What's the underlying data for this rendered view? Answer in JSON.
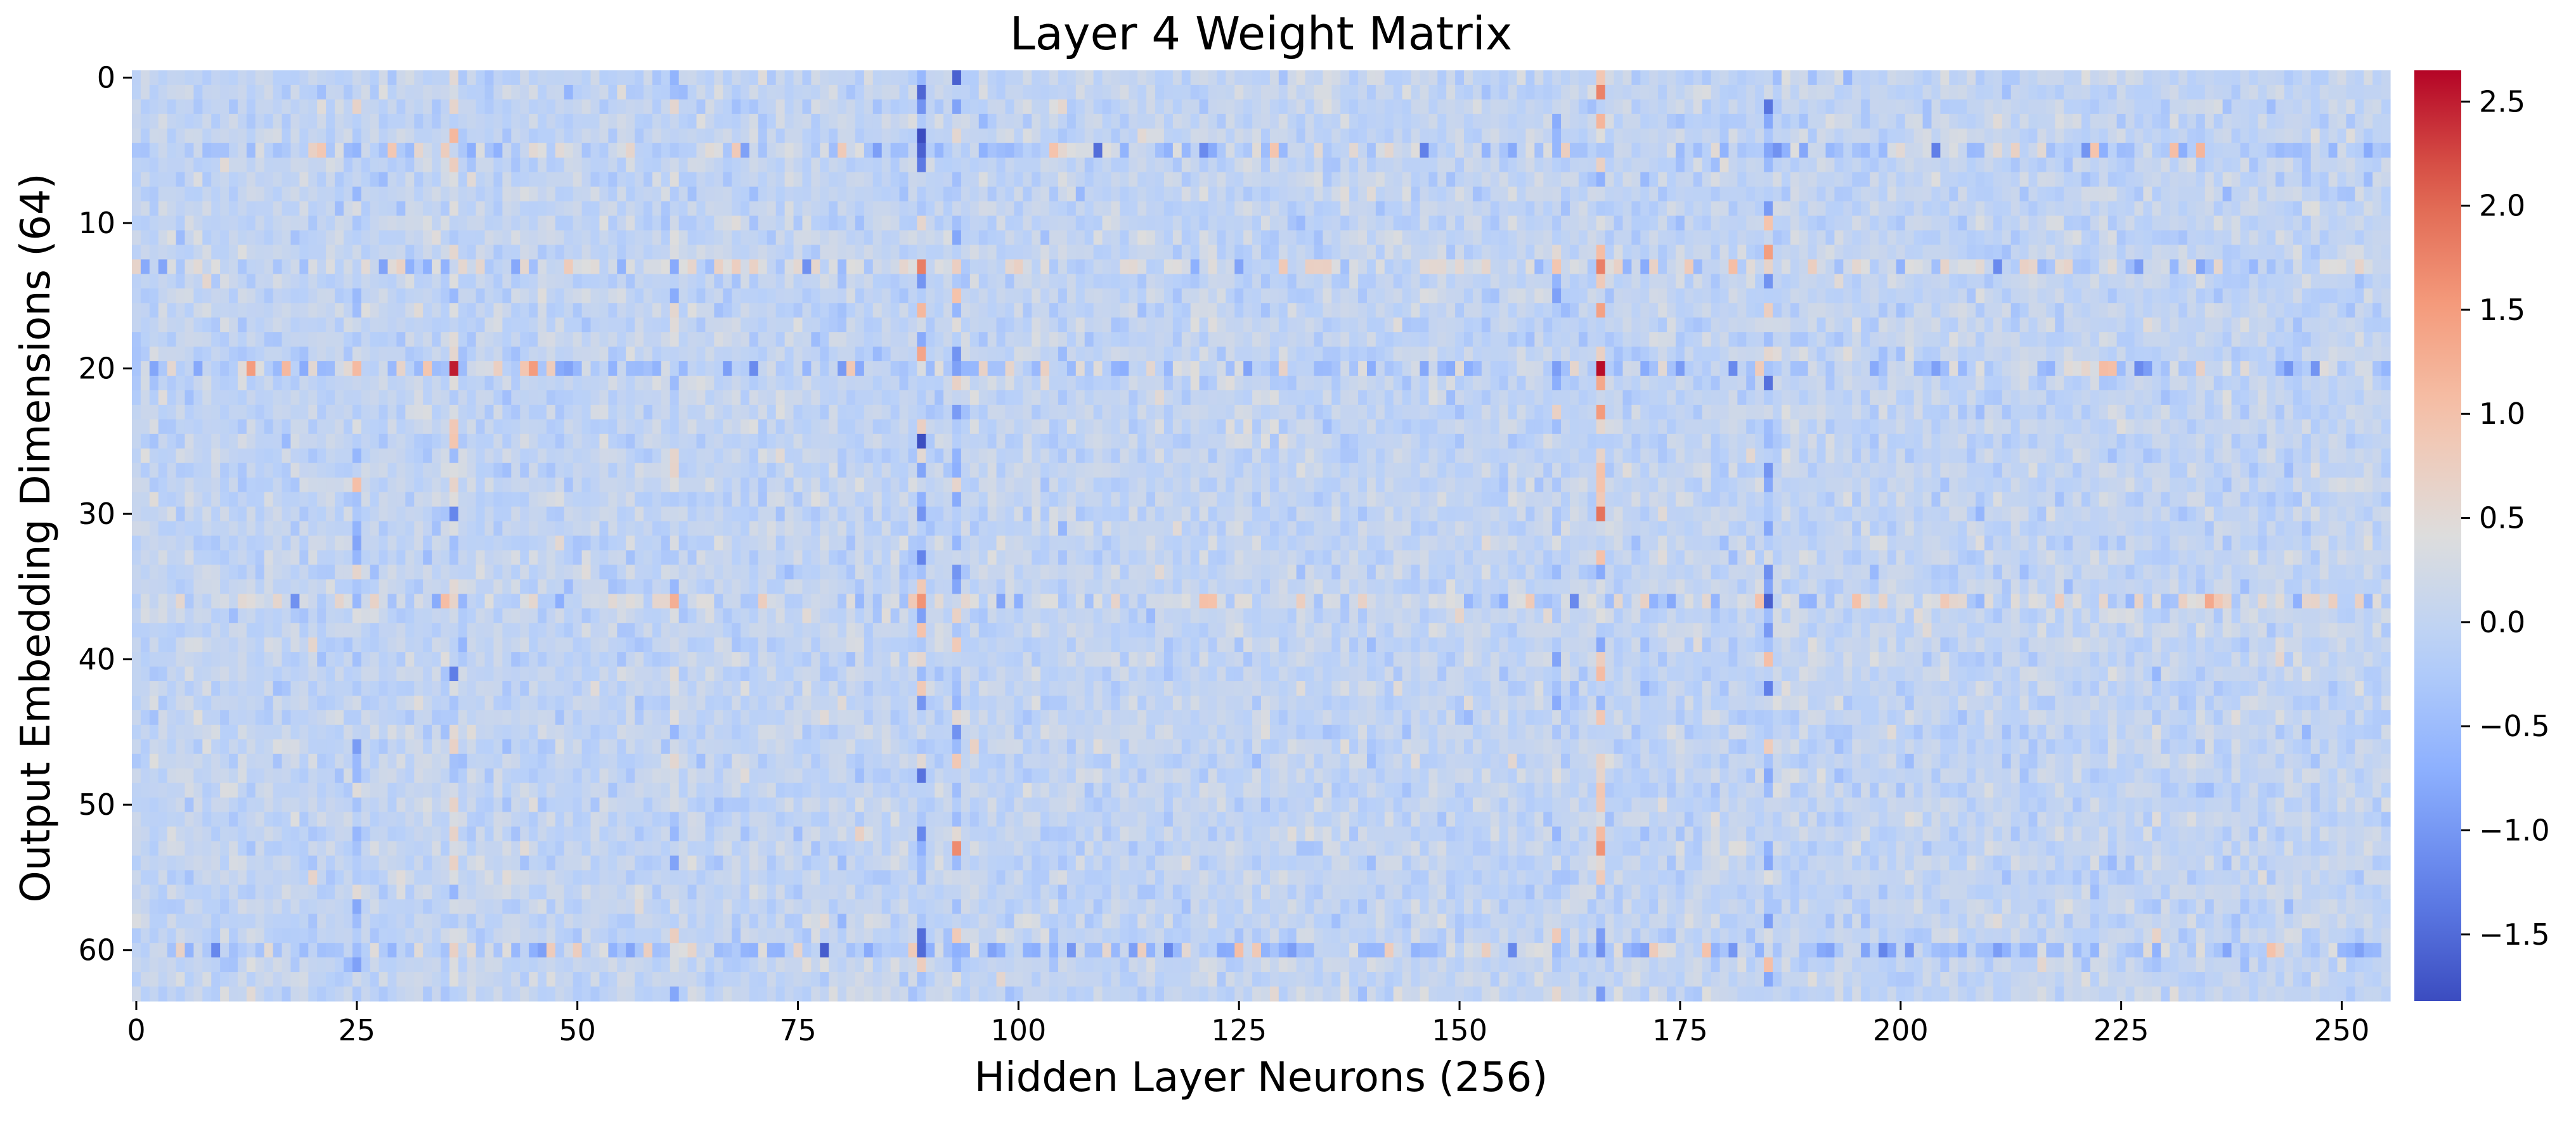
{
  "chart_data": {
    "type": "heatmap",
    "title": "Layer 4 Weight Matrix",
    "xlabel": "Hidden Layer Neurons (256)",
    "ylabel": "Output Embedding Dimensions (64)",
    "n_cols": 256,
    "n_rows": 64,
    "x_ticks": [
      0,
      25,
      50,
      75,
      100,
      125,
      150,
      175,
      200,
      225,
      250
    ],
    "y_ticks": [
      0,
      10,
      20,
      30,
      40,
      50,
      60
    ],
    "colormap": "coolwarm",
    "vmin": -1.82,
    "vmax": 2.65,
    "colorbar_ticks": [
      2.5,
      2.0,
      1.5,
      1.0,
      0.5,
      0.0,
      -0.5,
      -1.0,
      -1.5
    ],
    "colorbar_tick_labels": [
      "2.5",
      "2.0",
      "1.5",
      "1.0",
      "0.5",
      "0.0",
      "−0.5",
      "−1.0",
      "−1.5"
    ],
    "background_noise_std": 0.17,
    "highlighted_columns": [
      {
        "col": 25,
        "sign": -1,
        "scale": 0.5
      },
      {
        "col": 36,
        "sign": 1,
        "scale": 0.5
      },
      {
        "col": 61,
        "sign": 1,
        "scale": 0.4
      },
      {
        "col": 89,
        "sign": -1,
        "scale": 0.75
      },
      {
        "col": 93,
        "sign": -1,
        "scale": 0.5
      },
      {
        "col": 161,
        "sign": -1,
        "scale": 0.4
      },
      {
        "col": 166,
        "sign": 1,
        "scale": 0.7
      },
      {
        "col": 185,
        "sign": -1,
        "scale": 0.6
      }
    ],
    "highlighted_rows": [
      {
        "row": 5,
        "sign": -1,
        "scale": 0.45
      },
      {
        "row": 13,
        "sign": 1,
        "scale": 0.4
      },
      {
        "row": 20,
        "sign": -1,
        "scale": 0.45
      },
      {
        "row": 36,
        "sign": 1,
        "scale": 0.45
      },
      {
        "row": 60,
        "sign": -1,
        "scale": 0.45
      }
    ],
    "notable_cells": [
      {
        "col": 36,
        "row": 20,
        "value": 2.5
      },
      {
        "col": 166,
        "row": 20,
        "value": 2.6
      },
      {
        "col": 89,
        "row": 13,
        "value": 1.8
      },
      {
        "col": 89,
        "row": 36,
        "value": 1.6
      },
      {
        "col": 13,
        "row": 20,
        "value": 1.5
      },
      {
        "col": 45,
        "row": 20,
        "value": 1.5
      },
      {
        "col": 166,
        "row": 53,
        "value": 1.6
      },
      {
        "col": 89,
        "row": 5,
        "value": -1.6
      },
      {
        "col": 89,
        "row": 60,
        "value": -1.5
      },
      {
        "col": 185,
        "row": 2,
        "value": -1.4
      },
      {
        "col": 36,
        "row": 41,
        "value": -1.3
      },
      {
        "col": 36,
        "row": 30,
        "value": -1.2
      }
    ]
  }
}
